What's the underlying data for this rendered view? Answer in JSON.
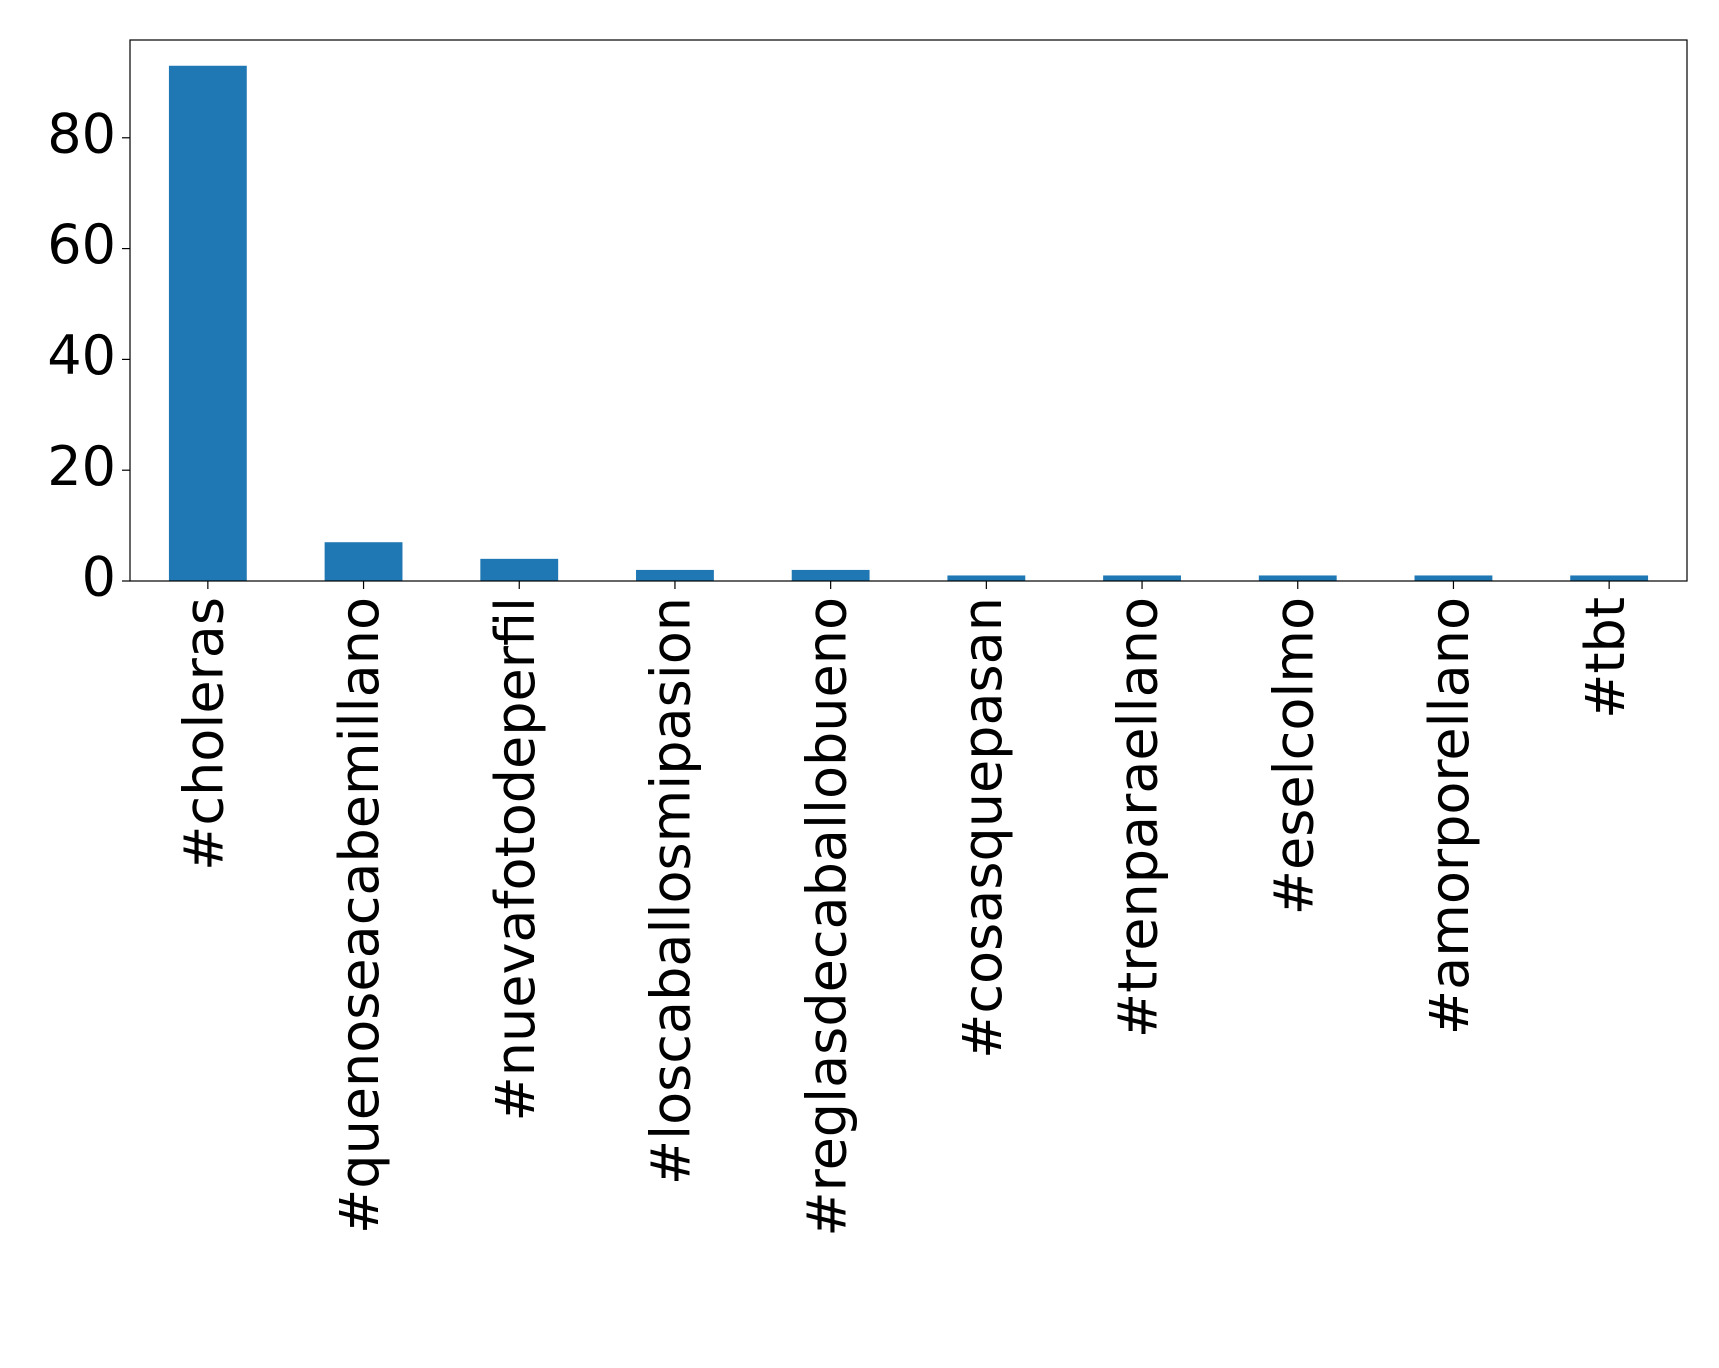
{
  "chart_data": {
    "type": "bar",
    "categories": [
      "#choleras",
      "#quenoseacabemillano",
      "#nuevafotodeperfil",
      "#loscaballosmipasion",
      "#reglasdecaballobueno",
      "#cosasquepasan",
      "#trenparaellano",
      "#eselcolmo",
      "#amorporellano",
      "#tbt"
    ],
    "values": [
      93,
      7,
      4,
      2,
      2,
      1,
      1,
      1,
      1,
      1
    ],
    "color": "#1f77b4",
    "ylim": [
      0,
      97.65
    ],
    "yticks": [
      0,
      20,
      40,
      60,
      80
    ],
    "grid": false
  }
}
